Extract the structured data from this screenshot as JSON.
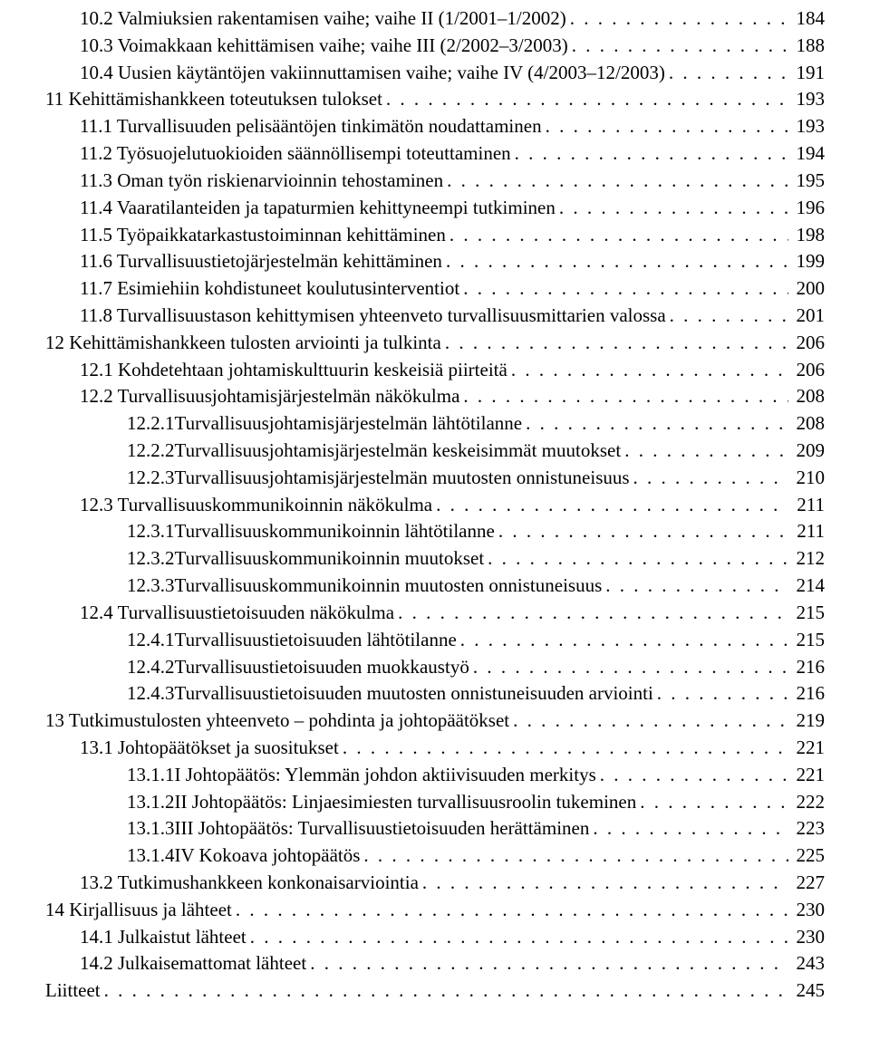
{
  "toc": [
    {
      "indent": 2,
      "label": "10.2  Valmiuksien rakentamisen vaihe; vaihe II (1/2001–1/2002)",
      "page": "184"
    },
    {
      "indent": 2,
      "label": "10.3  Voimakkaan kehittämisen vaihe; vaihe III (2/2002–3/2003)",
      "page": "188"
    },
    {
      "indent": 2,
      "label": "10.4  Uusien käytäntöjen vakiinnuttamisen vaihe; vaihe IV (4/2003–12/2003)",
      "page": "191"
    },
    {
      "indent": 0,
      "label": "11 Kehittämishankkeen toteutuksen tulokset",
      "page": "193"
    },
    {
      "indent": 2,
      "label": "11.1  Turvallisuuden pelisääntöjen tinkimätön noudattaminen",
      "page": "193"
    },
    {
      "indent": 2,
      "label": "11.2  Työsuojelutuokioiden säännöllisempi toteuttaminen",
      "page": "194"
    },
    {
      "indent": 2,
      "label": "11.3  Oman työn riskienarvioinnin tehostaminen",
      "page": "195"
    },
    {
      "indent": 2,
      "label": "11.4  Vaaratilanteiden ja tapaturmien kehittyneempi tutkiminen",
      "page": "196"
    },
    {
      "indent": 2,
      "label": "11.5  Työpaikkatarkastustoiminnan kehittäminen",
      "page": "198"
    },
    {
      "indent": 2,
      "label": "11.6  Turvallisuustietojärjestelmän kehittäminen",
      "page": "199"
    },
    {
      "indent": 2,
      "label": "11.7  Esimiehiin kohdistuneet koulutusinterventiot",
      "page": "200"
    },
    {
      "indent": 2,
      "label": "11.8  Turvallisuustason kehittymisen yhteenveto turvallisuusmittarien valossa",
      "page": "201"
    },
    {
      "indent": 0,
      "label": "12 Kehittämishankkeen tulosten arviointi ja tulkinta",
      "page": "206"
    },
    {
      "indent": 2,
      "label": "12.1  Kohdetehtaan johtamiskulttuurin keskeisiä piirteitä",
      "page": "206"
    },
    {
      "indent": 2,
      "label": "12.2  Turvallisuusjohtamisjärjestelmän näkökulma",
      "page": "208"
    },
    {
      "indent": 3,
      "label": "12.2.1Turvallisuusjohtamisjärjestelmän lähtötilanne",
      "page": "208"
    },
    {
      "indent": 3,
      "label": "12.2.2Turvallisuusjohtamisjärjestelmän keskeisimmät muutokset",
      "page": "209"
    },
    {
      "indent": 3,
      "label": "12.2.3Turvallisuusjohtamisjärjestelmän muutosten onnistuneisuus",
      "page": "210"
    },
    {
      "indent": 2,
      "label": "12.3  Turvallisuuskommunikoinnin näkökulma",
      "page": "211"
    },
    {
      "indent": 3,
      "label": "12.3.1Turvallisuuskommunikoinnin lähtötilanne",
      "page": "211"
    },
    {
      "indent": 3,
      "label": "12.3.2Turvallisuuskommunikoinnin muutokset",
      "page": "212"
    },
    {
      "indent": 3,
      "label": "12.3.3Turvallisuuskommunikoinnin muutosten onnistuneisuus",
      "page": "214"
    },
    {
      "indent": 2,
      "label": "12.4  Turvallisuustietoisuuden näkökulma",
      "page": "215"
    },
    {
      "indent": 3,
      "label": "12.4.1Turvallisuustietoisuuden lähtötilanne",
      "page": "215"
    },
    {
      "indent": 3,
      "label": "12.4.2Turvallisuustietoisuuden muokkaustyö",
      "page": "216"
    },
    {
      "indent": 3,
      "label": "12.4.3Turvallisuustietoisuuden muutosten onnistuneisuuden arviointi",
      "page": "216"
    },
    {
      "indent": 0,
      "label": "13 Tutkimustulosten yhteenveto – pohdinta ja johtopäätökset",
      "page": "219"
    },
    {
      "indent": 2,
      "label": "13.1  Johtopäätökset ja suositukset",
      "page": "221"
    },
    {
      "indent": 3,
      "label": "13.1.1I Johtopäätös: Ylemmän johdon aktiivisuuden merkitys",
      "page": "221"
    },
    {
      "indent": 3,
      "label": "13.1.2II Johtopäätös: Linjaesimiesten turvallisuusroolin tukeminen",
      "page": "222"
    },
    {
      "indent": 3,
      "label": "13.1.3III Johtopäätös: Turvallisuustietoisuuden herättäminen",
      "page": "223"
    },
    {
      "indent": 3,
      "label": "13.1.4IV Kokoava johtopäätös",
      "page": "225"
    },
    {
      "indent": 2,
      "label": "13.2  Tutkimushankkeen konkonaisarviointia",
      "page": "227"
    },
    {
      "indent": 0,
      "label": "14 Kirjallisuus ja lähteet",
      "page": "230"
    },
    {
      "indent": 2,
      "label": "14.1  Julkaistut lähteet",
      "page": "230"
    },
    {
      "indent": 2,
      "label": "14.2  Julkaisemattomat lähteet",
      "page": "243"
    },
    {
      "indent": 0,
      "label": "Liitteet",
      "page": "245"
    }
  ]
}
